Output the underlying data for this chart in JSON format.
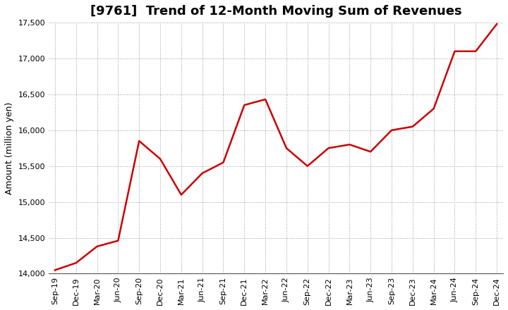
{
  "title": "[9761]  Trend of 12-Month Moving Sum of Revenues",
  "ylabel": "Amount (million yen)",
  "line_color": "#cc0000",
  "line_width": 1.8,
  "background_color": "#ffffff",
  "grid_color": "#999999",
  "ylim": [
    14000,
    17500
  ],
  "yticks": [
    14000,
    14500,
    15000,
    15500,
    16000,
    16500,
    17000,
    17500
  ],
  "x_labels": [
    "Sep-19",
    "Dec-19",
    "Mar-20",
    "Jun-20",
    "Sep-20",
    "Dec-20",
    "Mar-21",
    "Jun-21",
    "Sep-21",
    "Dec-21",
    "Mar-22",
    "Jun-22",
    "Sep-22",
    "Dec-22",
    "Mar-23",
    "Jun-23",
    "Sep-23",
    "Dec-23",
    "Mar-24",
    "Jun-24",
    "Sep-24",
    "Dec-24"
  ],
  "values": [
    14050,
    14150,
    14380,
    14460,
    15850,
    15600,
    15100,
    15400,
    15550,
    16350,
    16430,
    15750,
    15500,
    15750,
    15800,
    15700,
    16000,
    16050,
    16300,
    17100,
    17100,
    17480
  ],
  "title_fontsize": 13,
  "ylabel_fontsize": 9,
  "tick_fontsize": 8
}
